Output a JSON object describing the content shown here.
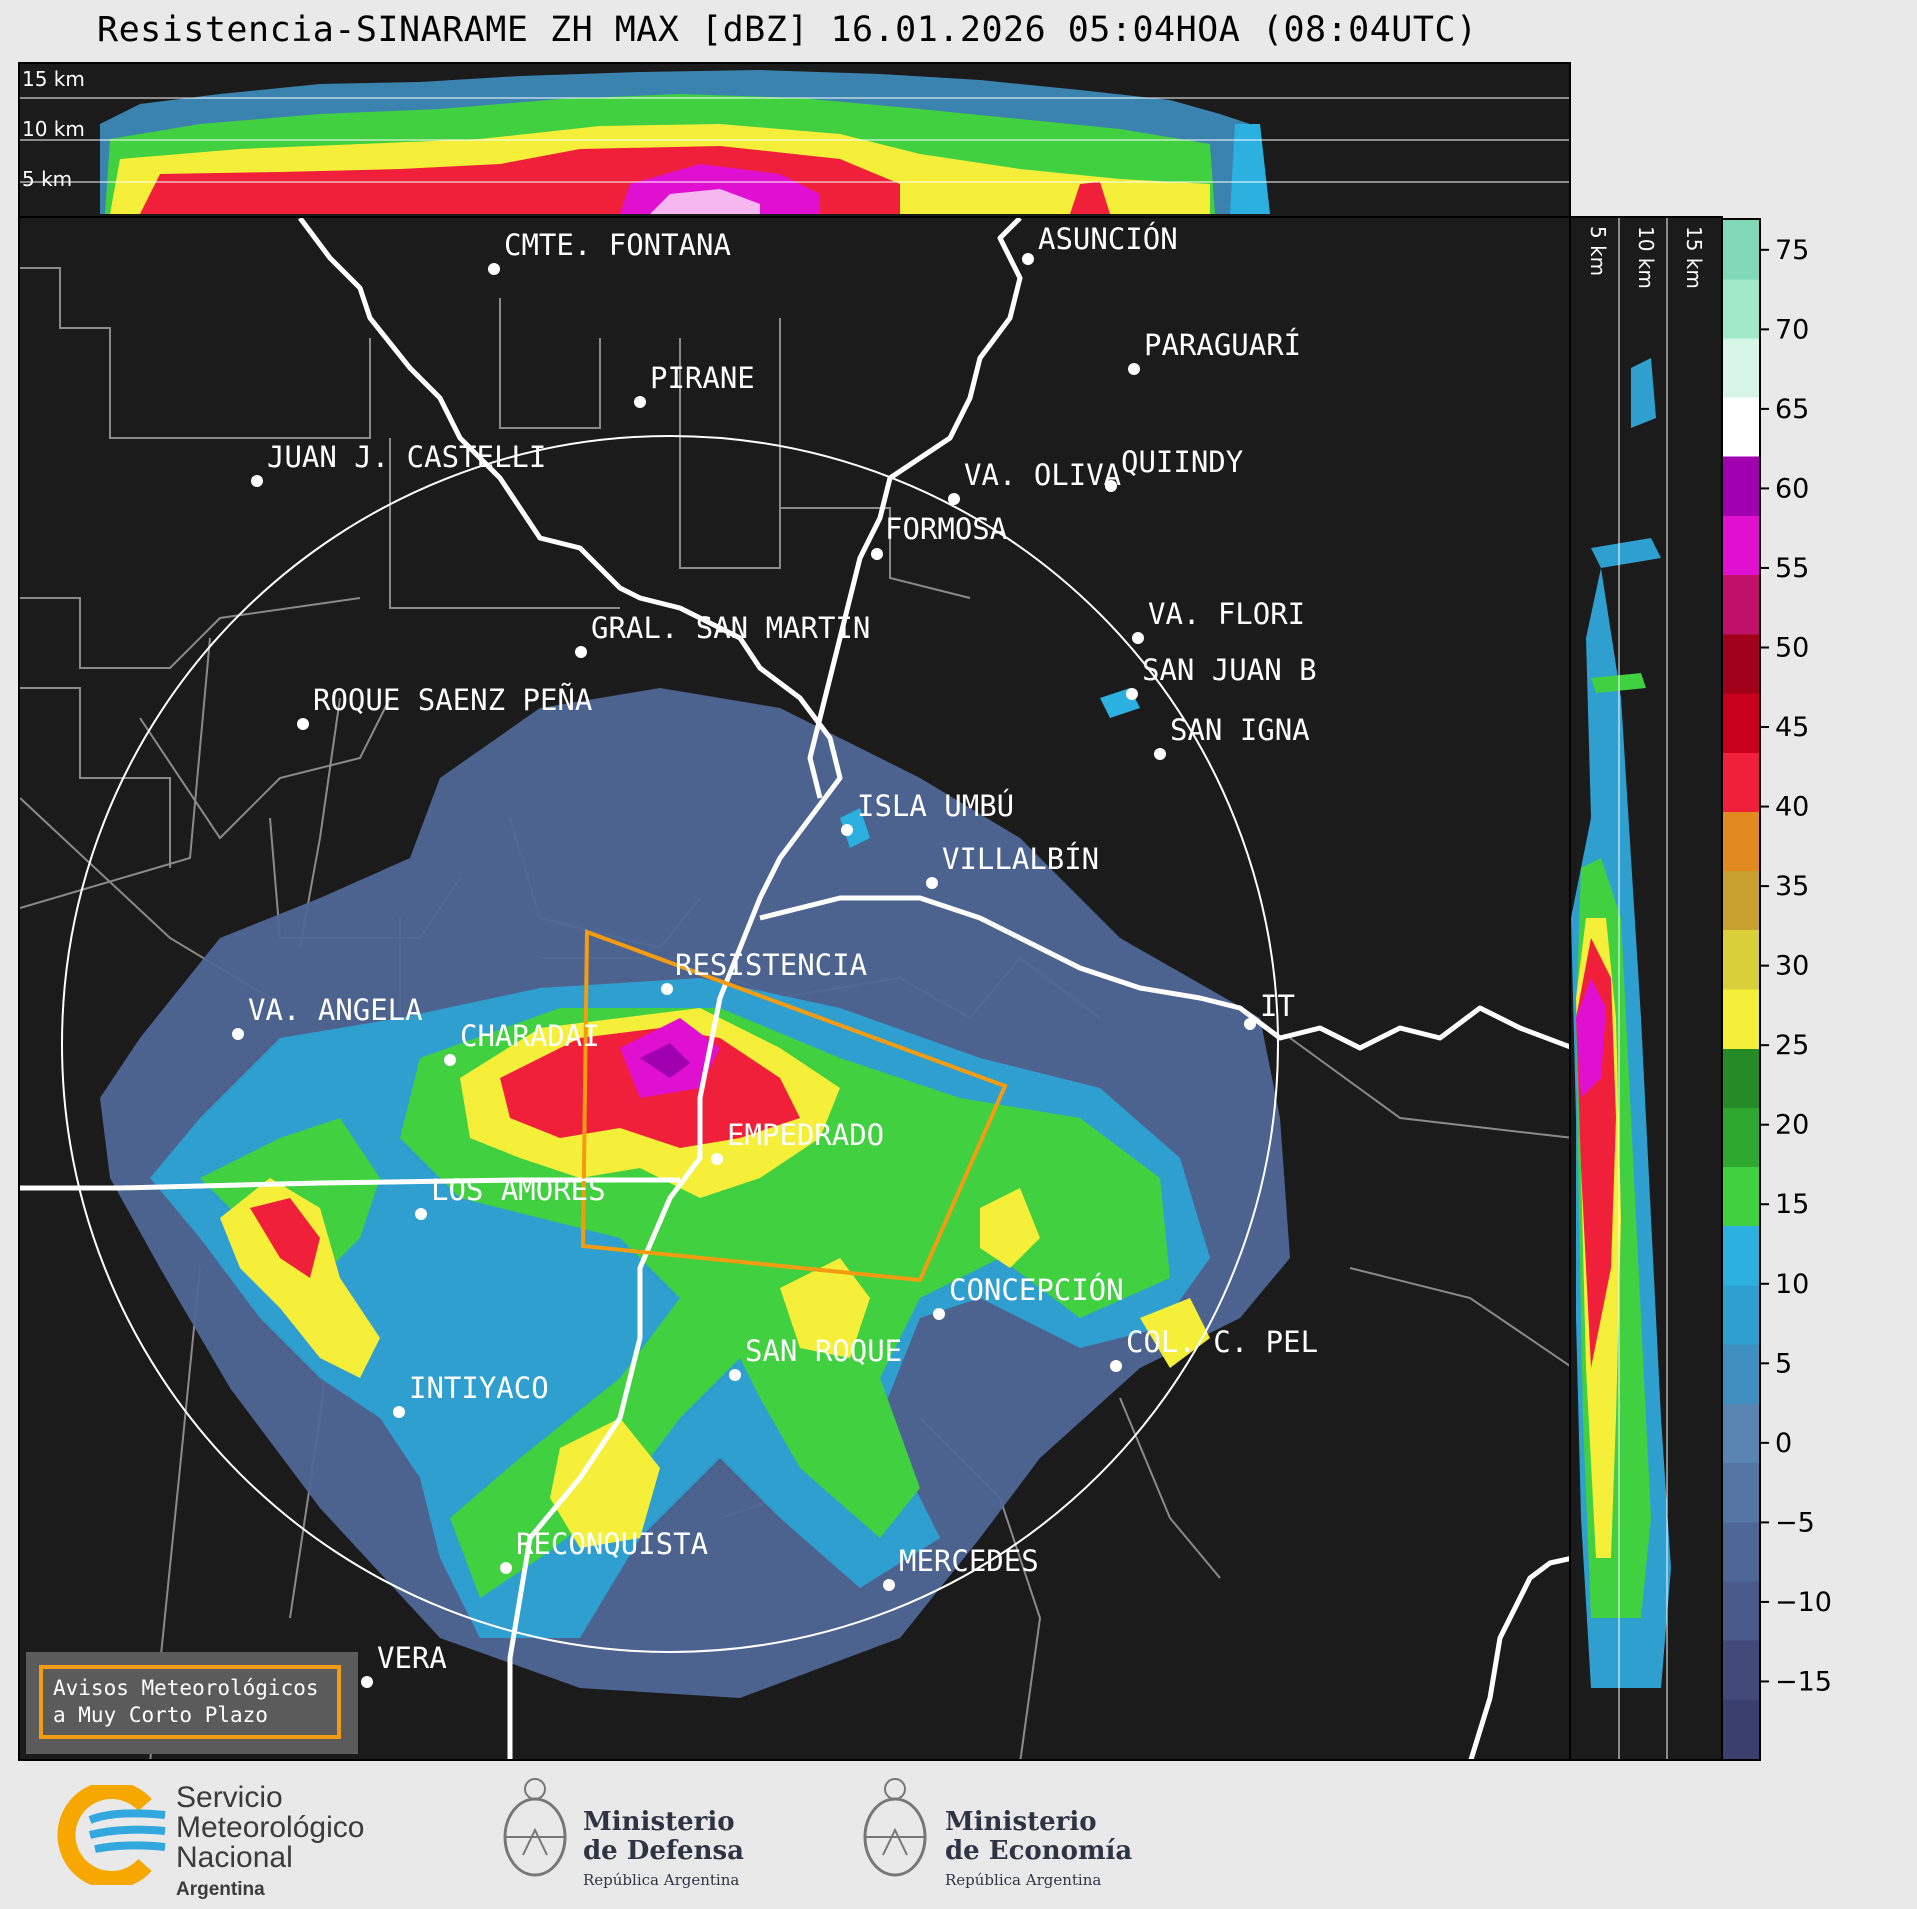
{
  "title": "Resistencia-SINARAME ZH MAX [dBZ] 16.01.2026 05:04HOA (08:04UTC)",
  "height_labels": {
    "km15": "15 km",
    "km10": "10 km",
    "km5": "5 km"
  },
  "colorbar": {
    "ticks": [
      "75",
      "70",
      "65",
      "60",
      "55",
      "50",
      "45",
      "40",
      "35",
      "30",
      "25",
      "20",
      "15",
      "10",
      "5",
      "0",
      "−5",
      "−10",
      "−15"
    ],
    "range_dbz": [
      -20,
      77
    ],
    "colors": [
      "#3b3f6e",
      "#424a7a",
      "#4a5a8a",
      "#4f6796",
      "#5576a4",
      "#5a85b2",
      "#3f8fc0",
      "#2f9fd0",
      "#2bb0e0",
      "#40d040",
      "#2fa82f",
      "#268a26",
      "#f5ef3a",
      "#d9cf3a",
      "#c8a030",
      "#e08a20",
      "#f0203a",
      "#c8001e",
      "#a0001a",
      "#c0106a",
      "#e010d0",
      "#a000b0",
      "#ffffff",
      "#d6f5e8",
      "#a0e8c8",
      "#80d8b8"
    ]
  },
  "cities": [
    {
      "name": "CMTE. FONTANA"
    },
    {
      "name": "ASUNCIÓN"
    },
    {
      "name": "PIRANE"
    },
    {
      "name": "PARAGUARÍ"
    },
    {
      "name": "JUAN J. CASTELLI"
    },
    {
      "name": "VA. OLIVA"
    },
    {
      "name": "QUIINDY"
    },
    {
      "name": "FORMOSA"
    },
    {
      "name": "VA. FLORI"
    },
    {
      "name": "GRAL. SAN MARTIN"
    },
    {
      "name": "SAN JUAN B"
    },
    {
      "name": "ROQUE SAENZ PEÑA"
    },
    {
      "name": "SAN IGNA"
    },
    {
      "name": "ISLA UMBÚ"
    },
    {
      "name": "VILLALBÍN"
    },
    {
      "name": "RESISTENCIA"
    },
    {
      "name": "VA. ANGELA"
    },
    {
      "name": "CHARADAI"
    },
    {
      "name": "IT"
    },
    {
      "name": "EMPEDRADO"
    },
    {
      "name": "LOS AMORES"
    },
    {
      "name": "CONCEPCIÓN"
    },
    {
      "name": "SAN ROQUE"
    },
    {
      "name": "COL. C. PEL"
    },
    {
      "name": "INTIYACO"
    },
    {
      "name": "RECONQUISTA"
    },
    {
      "name": "MERCEDES"
    },
    {
      "name": "VERA"
    }
  ],
  "notice": {
    "line1": "Avisos Meteorológicos",
    "line2": "a Muy Corto Plazo"
  },
  "footer": {
    "smn": {
      "line1": "Servicio",
      "line2": "Meteorológico",
      "line3": "Nacional",
      "sub": "Argentina"
    },
    "defensa": {
      "line1": "Ministerio",
      "line2": "de Defensa",
      "sub": "República Argentina"
    },
    "economia": {
      "line1": "Ministerio",
      "line2": "de Economía",
      "sub": "República Argentina"
    }
  }
}
